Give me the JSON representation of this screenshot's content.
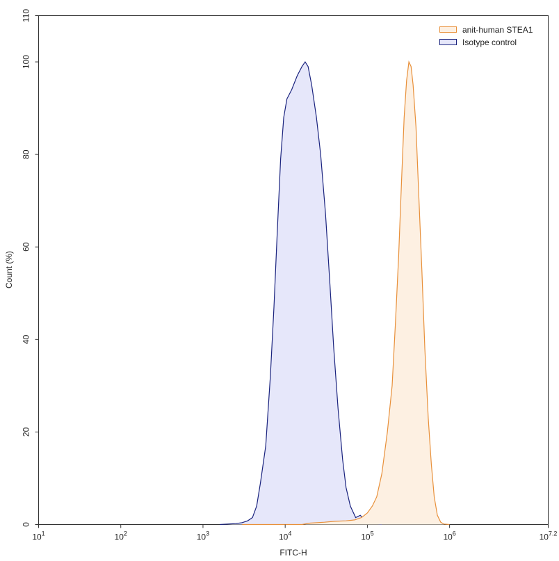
{
  "chart_data": {
    "type": "area",
    "title": "",
    "xlabel": "FITC-H",
    "ylabel": "Count (%)",
    "x_scale": "log10",
    "xlim": [
      10,
      15848932
    ],
    "ylim": [
      0,
      110
    ],
    "grid": false,
    "legend_position": "top-right",
    "x_ticks": [
      {
        "base": "10",
        "exp": "1"
      },
      {
        "base": "10",
        "exp": "2"
      },
      {
        "base": "10",
        "exp": "3"
      },
      {
        "base": "10",
        "exp": "4"
      },
      {
        "base": "10",
        "exp": "5"
      },
      {
        "base": "10",
        "exp": "6"
      },
      {
        "base": "10",
        "exp": "7.2"
      }
    ],
    "y_ticks": [
      "0",
      "20",
      "40",
      "60",
      "80",
      "100",
      "110"
    ],
    "series": [
      {
        "name": "anit-human STEA1",
        "stroke": "#e8903a",
        "fill": "#fdf0e2",
        "points": [
          [
            3000,
            0
          ],
          [
            16000,
            0
          ],
          [
            20000,
            0.3
          ],
          [
            30000,
            0.5
          ],
          [
            40000,
            0.7
          ],
          [
            55000,
            0.8
          ],
          [
            70000,
            1
          ],
          [
            85000,
            1.5
          ],
          [
            100000,
            2.5
          ],
          [
            115000,
            4
          ],
          [
            130000,
            6
          ],
          [
            150000,
            11
          ],
          [
            175000,
            20
          ],
          [
            200000,
            30
          ],
          [
            220000,
            44
          ],
          [
            240000,
            58
          ],
          [
            260000,
            74
          ],
          [
            280000,
            88
          ],
          [
            300000,
            96
          ],
          [
            320000,
            100
          ],
          [
            340000,
            99
          ],
          [
            360000,
            95
          ],
          [
            390000,
            86
          ],
          [
            420000,
            72
          ],
          [
            460000,
            55
          ],
          [
            500000,
            38
          ],
          [
            550000,
            23
          ],
          [
            600000,
            13
          ],
          [
            650000,
            6
          ],
          [
            710000,
            2
          ],
          [
            780000,
            0.5
          ],
          [
            850000,
            0.1
          ],
          [
            1000000,
            0
          ]
        ]
      },
      {
        "name": "Isotype control",
        "stroke": "#1a237e",
        "fill": "#e6e7fa",
        "points": [
          [
            1600,
            0
          ],
          [
            2500,
            0.2
          ],
          [
            3000,
            0.4
          ],
          [
            3500,
            0.8
          ],
          [
            4000,
            1.5
          ],
          [
            4500,
            4
          ],
          [
            5000,
            9
          ],
          [
            5800,
            17
          ],
          [
            6600,
            32
          ],
          [
            7300,
            47
          ],
          [
            8000,
            63
          ],
          [
            8800,
            79
          ],
          [
            9600,
            88
          ],
          [
            10500,
            92
          ],
          [
            12000,
            94
          ],
          [
            14000,
            97
          ],
          [
            16000,
            99
          ],
          [
            17500,
            100
          ],
          [
            19000,
            99
          ],
          [
            21000,
            95
          ],
          [
            24000,
            88
          ],
          [
            27000,
            80
          ],
          [
            31000,
            67
          ],
          [
            35000,
            52
          ],
          [
            39000,
            38
          ],
          [
            44000,
            25
          ],
          [
            50000,
            14
          ],
          [
            55000,
            8
          ],
          [
            62000,
            4
          ],
          [
            72000,
            1.5
          ],
          [
            82000,
            2
          ],
          [
            92000,
            1
          ],
          [
            105000,
            0.3
          ],
          [
            130000,
            0.1
          ],
          [
            150000,
            0
          ]
        ]
      }
    ]
  }
}
